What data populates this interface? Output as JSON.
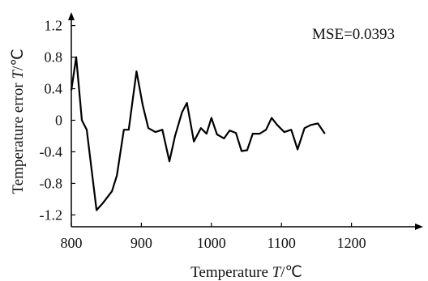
{
  "chart_data": {
    "type": "line",
    "xlabel": {
      "prefix": "Temperature ",
      "var": "T",
      "unit": "/℃"
    },
    "ylabel": {
      "prefix": "Temperature error ",
      "var": "T",
      "unit": "/℃"
    },
    "annotation": "MSE=0.0393",
    "xlim": [
      800,
      1300
    ],
    "ylim": [
      -1.35,
      1.35
    ],
    "x_ticks": [
      "800",
      "900",
      "1000",
      "1100",
      "1200"
    ],
    "x_tick_values": [
      800,
      900,
      1000,
      1100,
      1200
    ],
    "y_ticks": [
      "1.2",
      "0.8",
      "0.4",
      "0",
      "-0.4",
      "-0.8",
      "-1.2"
    ],
    "y_tick_values": [
      1.2,
      0.8,
      0.4,
      0,
      -0.4,
      -0.8,
      -1.2
    ],
    "grid": false,
    "legend": "none",
    "series": [
      {
        "color": "#000000",
        "points": [
          [
            800,
            0.38
          ],
          [
            807,
            0.8
          ],
          [
            815,
            0.0
          ],
          [
            822,
            -0.12
          ],
          [
            836,
            -1.14
          ],
          [
            845,
            -1.05
          ],
          [
            858,
            -0.9
          ],
          [
            865,
            -0.7
          ],
          [
            875,
            -0.12
          ],
          [
            882,
            -0.12
          ],
          [
            893,
            0.62
          ],
          [
            902,
            0.19
          ],
          [
            910,
            -0.1
          ],
          [
            920,
            -0.15
          ],
          [
            930,
            -0.12
          ],
          [
            940,
            -0.52
          ],
          [
            948,
            -0.2
          ],
          [
            958,
            0.1
          ],
          [
            965,
            0.22
          ],
          [
            975,
            -0.27
          ],
          [
            985,
            -0.1
          ],
          [
            993,
            -0.17
          ],
          [
            1000,
            0.03
          ],
          [
            1008,
            -0.18
          ],
          [
            1018,
            -0.23
          ],
          [
            1026,
            -0.13
          ],
          [
            1035,
            -0.16
          ],
          [
            1043,
            -0.39
          ],
          [
            1051,
            -0.38
          ],
          [
            1059,
            -0.17
          ],
          [
            1069,
            -0.17
          ],
          [
            1078,
            -0.12
          ],
          [
            1086,
            0.03
          ],
          [
            1094,
            -0.06
          ],
          [
            1104,
            -0.15
          ],
          [
            1114,
            -0.12
          ],
          [
            1123,
            -0.37
          ],
          [
            1133,
            -0.1
          ],
          [
            1142,
            -0.06
          ],
          [
            1152,
            -0.04
          ],
          [
            1162,
            -0.17
          ]
        ]
      }
    ]
  }
}
